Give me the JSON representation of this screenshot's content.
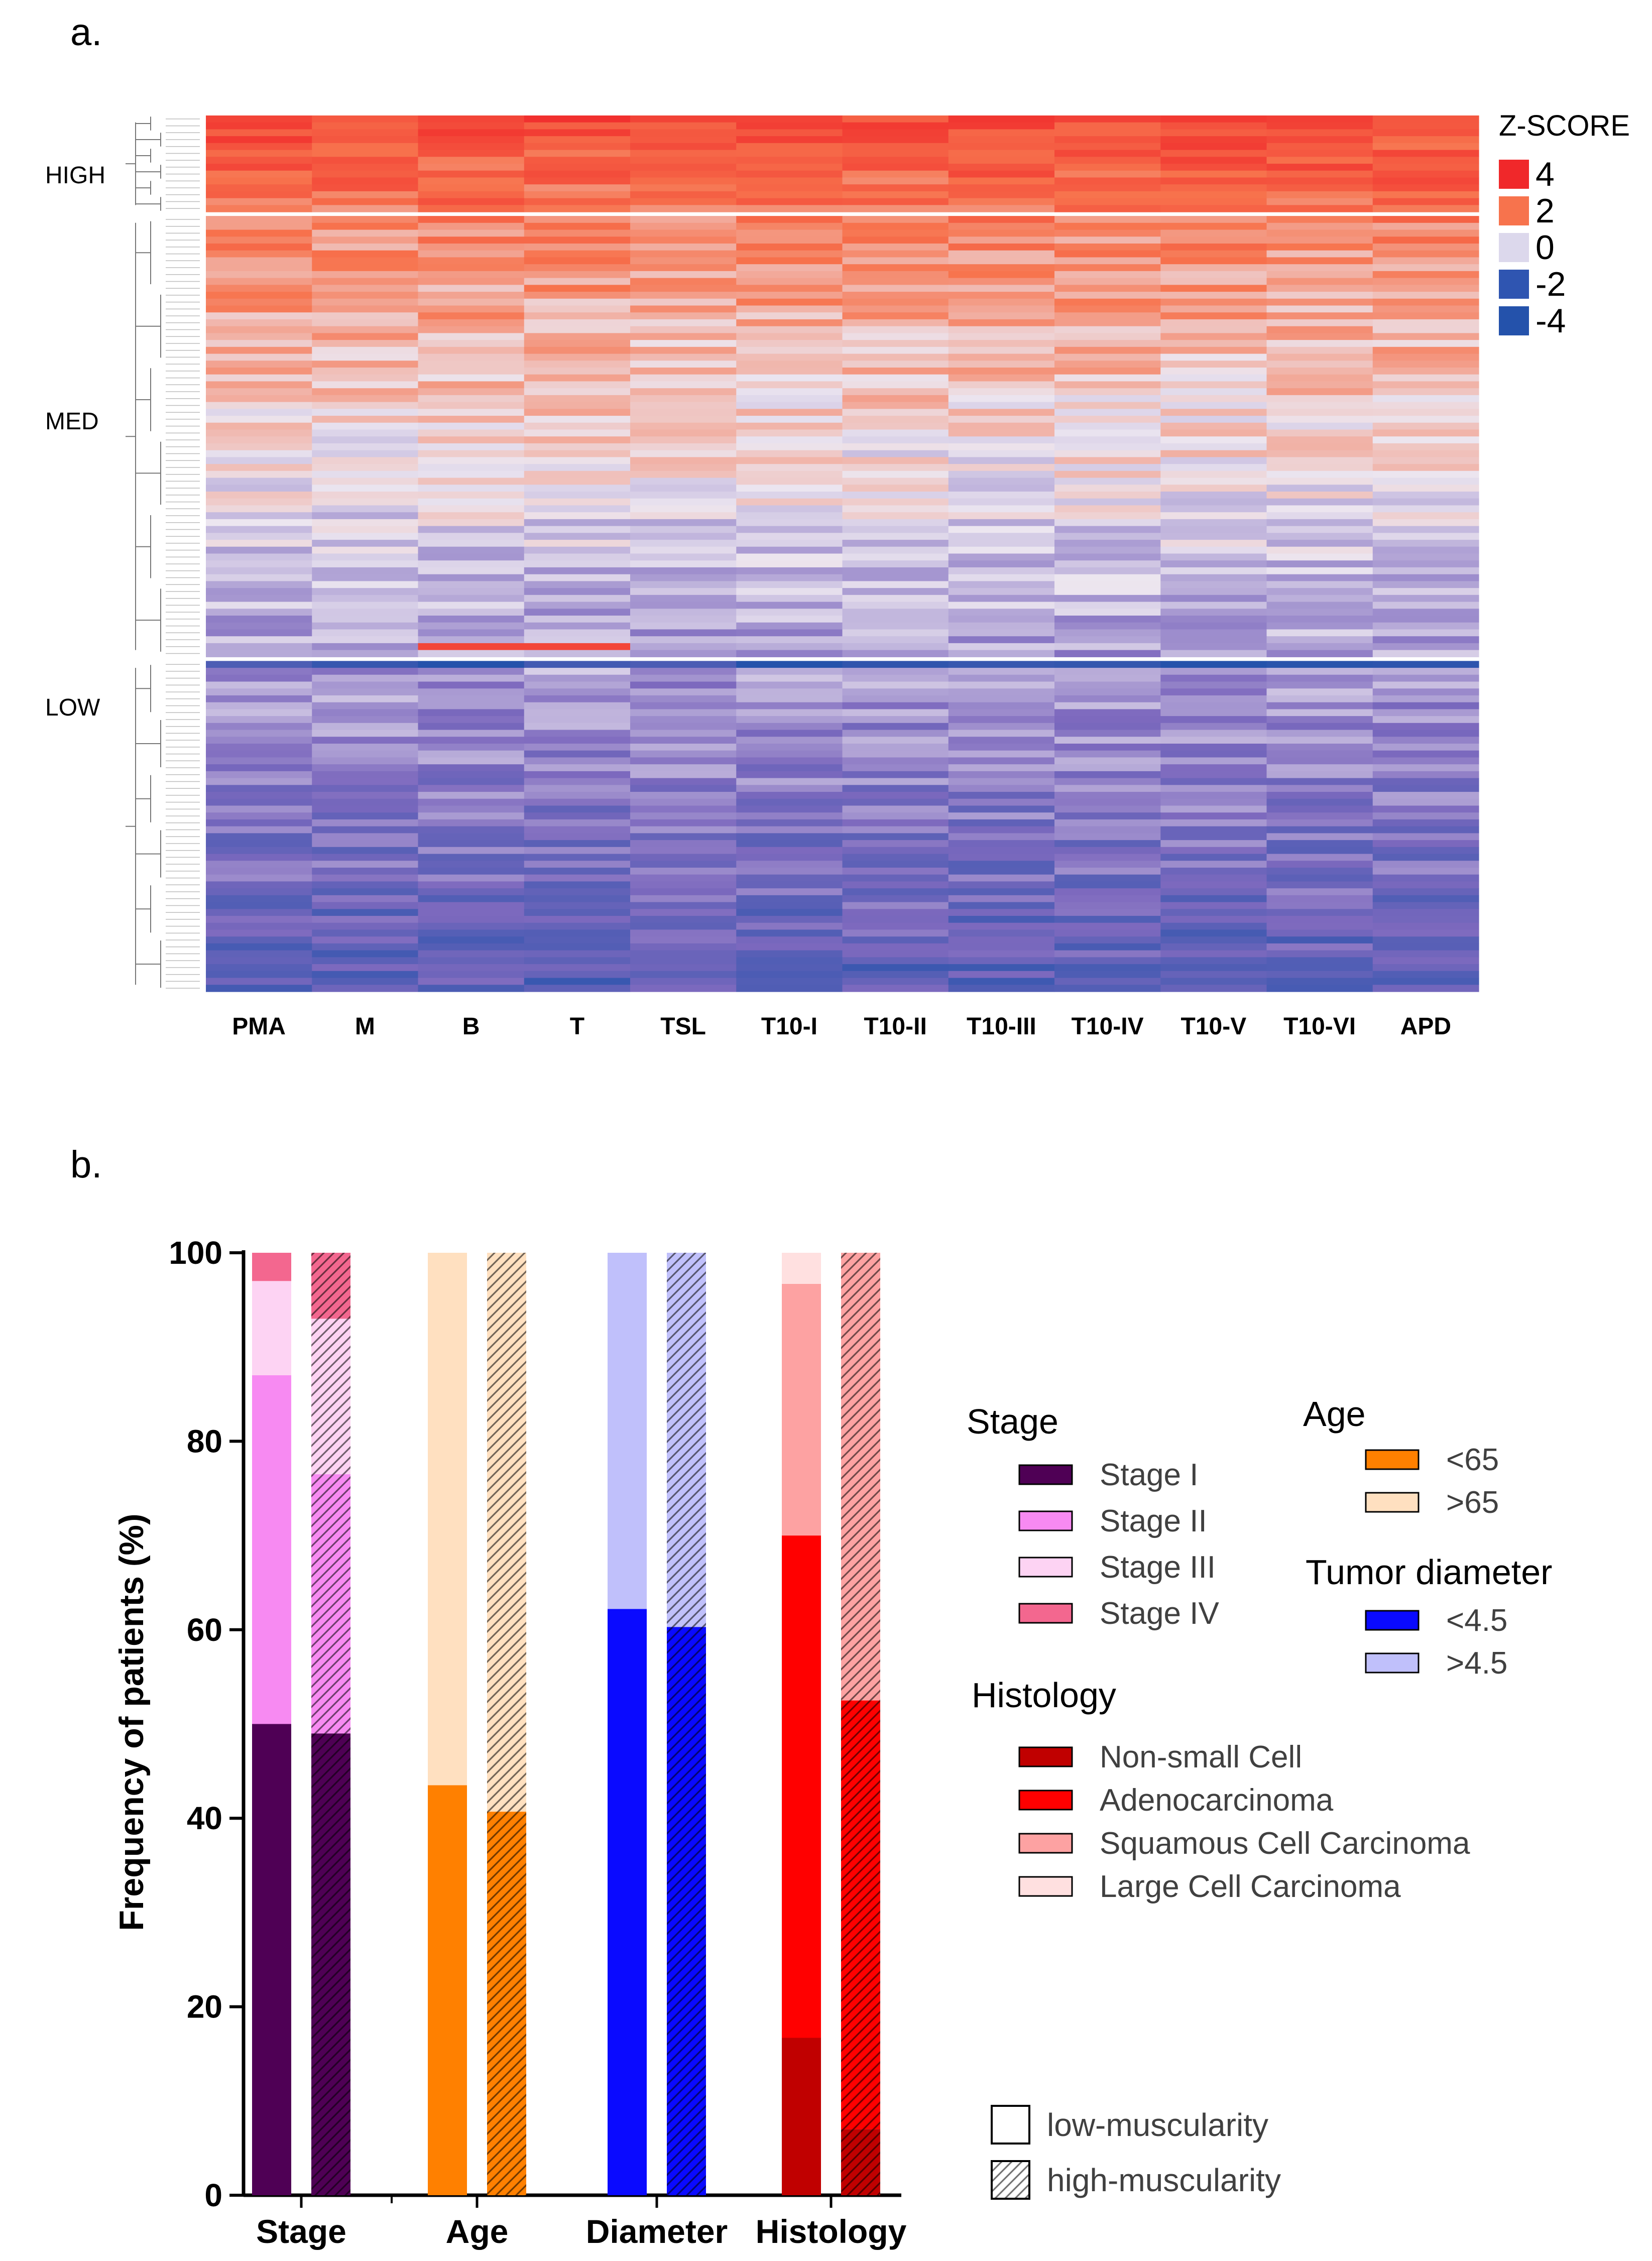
{
  "chart_data": [
    {
      "type": "heatmap",
      "panel_label": "a.",
      "columns": [
        "PMA",
        "M",
        "B",
        "T",
        "TSL",
        "T10-I",
        "T10-II",
        "T10-III",
        "T10-IV",
        "T10-V",
        "T10-VI",
        "APD"
      ],
      "row_groups": [
        {
          "label": "HIGH",
          "rows": 14
        },
        {
          "label": "MED",
          "rows": 64
        },
        {
          "label": "LOW",
          "rows": 48
        }
      ],
      "color_scale": {
        "title": "Z-SCORE",
        "ticks": [
          "4",
          "2",
          "0",
          "-2",
          "-4"
        ],
        "tick_values": [
          4,
          2,
          0,
          -2,
          -4
        ],
        "colors": [
          "#f0282a",
          "#f7734d",
          "#dcd8ec",
          "#2f55b1",
          "#2452ab"
        ]
      }
    },
    {
      "type": "bar",
      "stacked": true,
      "panel_label": "b.",
      "ylabel": "Frequency of patients (%)",
      "ylim": [
        0,
        100
      ],
      "yticks": [
        "0",
        "20",
        "40",
        "60",
        "80",
        "100"
      ],
      "categories": [
        "Stage",
        "Age",
        "Diameter",
        "Histology"
      ],
      "groups": [
        {
          "category": "Stage",
          "low_muscularity": [
            {
              "name": "Stage I",
              "value": 50
            },
            {
              "name": "Stage II",
              "value": 37
            },
            {
              "name": "Stage III",
              "value": 10
            },
            {
              "name": "Stage IV",
              "value": 3
            }
          ],
          "high_muscularity": [
            {
              "name": "Stage I",
              "value": 49
            },
            {
              "name": "Stage II",
              "value": 27.5
            },
            {
              "name": "Stage III",
              "value": 16.5
            },
            {
              "name": "Stage IV",
              "value": 7
            }
          ]
        },
        {
          "category": "Age",
          "low_muscularity": [
            {
              "name": "<65",
              "value": 43.5
            },
            {
              "name": ">65",
              "value": 56.5
            }
          ],
          "high_muscularity": [
            {
              "name": "<65",
              "value": 40.7
            },
            {
              "name": ">65",
              "value": 59.3
            }
          ]
        },
        {
          "category": "Diameter",
          "low_muscularity": [
            {
              "name": "<4.5",
              "value": 62.2
            },
            {
              "name": ">4.5",
              "value": 37.8
            }
          ],
          "high_muscularity": [
            {
              "name": "<4.5",
              "value": 60.3
            },
            {
              "name": ">4.5",
              "value": 39.7
            }
          ]
        },
        {
          "category": "Histology",
          "low_muscularity": [
            {
              "name": "Non-small Cell",
              "value": 16.7
            },
            {
              "name": "Adenocarcinoma",
              "value": 53.3
            },
            {
              "name": "Squamous Cell Carcinoma",
              "value": 26.7
            },
            {
              "name": "Large Cell Carcinoma",
              "value": 3.3
            }
          ],
          "high_muscularity": [
            {
              "name": "Non-small Cell",
              "value": 7
            },
            {
              "name": "Adenocarcinoma",
              "value": 45.5
            },
            {
              "name": "Squamous Cell Carcinoma",
              "value": 47.5
            },
            {
              "name": "Large Cell Carcinoma",
              "value": 0
            }
          ]
        }
      ],
      "legend": {
        "stage": {
          "title": "Stage",
          "items": [
            {
              "label": "Stage I",
              "color": "#4f0055"
            },
            {
              "label": "Stage II",
              "color": "#f78af2"
            },
            {
              "label": "Stage III",
              "color": "#fdd3f3"
            },
            {
              "label": "Stage IV",
              "color": "#f3678f"
            }
          ]
        },
        "age": {
          "title": "Age",
          "items": [
            {
              "label": "<65",
              "color": "#ff8000"
            },
            {
              "label": ">65",
              "color": "#ffe0c0"
            }
          ]
        },
        "diameter": {
          "title": "Tumor diameter",
          "items": [
            {
              "label": "<4.5",
              "color": "#0a0aff"
            },
            {
              "label": ">4.5",
              "color": "#c0c0fb"
            }
          ]
        },
        "histology": {
          "title": "Histology",
          "items": [
            {
              "label": "Non-small Cell",
              "color": "#c00000"
            },
            {
              "label": "Adenocarcinoma",
              "color": "#ff0000"
            },
            {
              "label": "Squamous Cell Carcinoma",
              "color": "#fda2a2"
            },
            {
              "label": "Large Cell Carcinoma",
              "color": "#ffe0e0"
            }
          ]
        },
        "pattern": {
          "items": [
            {
              "label": "low-muscularity",
              "pattern": "solid"
            },
            {
              "label": "high-muscularity",
              "pattern": "hatched"
            }
          ]
        }
      }
    }
  ]
}
